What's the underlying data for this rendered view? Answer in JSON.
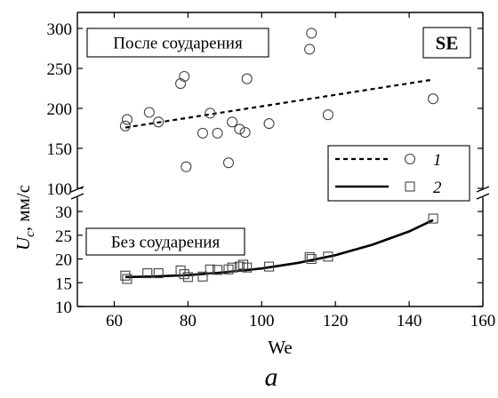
{
  "chart_data": {
    "type": "scatter",
    "title": "",
    "xlabel": "We",
    "ylabel": "U",
    "ylabel_sub": "c",
    "ylabel_unit": ", мм/с",
    "caption": "a",
    "panel_label": "SE",
    "axis_break": true,
    "xlim": [
      50,
      160
    ],
    "xticks": [
      60,
      80,
      100,
      120,
      140,
      160
    ],
    "upper_panel": {
      "label": "После соударения",
      "ylim": [
        100,
        320
      ],
      "yticks": [
        100,
        150,
        200,
        250,
        300
      ],
      "series": [
        {
          "legend": "1",
          "marker": "circle",
          "points": [
            [
              63,
              178
            ],
            [
              63.5,
              186
            ],
            [
              69.5,
              195
            ],
            [
              72,
              183
            ],
            [
              78,
              231
            ],
            [
              79,
              240
            ],
            [
              79.5,
              127
            ],
            [
              86,
              194
            ],
            [
              88,
              169
            ],
            [
              84,
              169
            ],
            [
              91,
              132
            ],
            [
              92,
              183
            ],
            [
              94,
              174
            ],
            [
              95.5,
              170
            ],
            [
              96,
              237
            ],
            [
              102,
              181
            ],
            [
              113,
              274
            ],
            [
              113.5,
              294
            ],
            [
              118,
              192
            ],
            [
              146.5,
              212
            ]
          ],
          "fit": {
            "style": "dashed",
            "x": [
              63,
              146.5
            ],
            "y": [
              176,
              236
            ]
          }
        }
      ]
    },
    "lower_panel": {
      "label": "Без соударения",
      "ylim": [
        10,
        33
      ],
      "yticks": [
        10,
        15,
        20,
        25,
        30
      ],
      "series": [
        {
          "legend": "2",
          "marker": "square",
          "points": [
            [
              63,
              16.5
            ],
            [
              63.5,
              15.8
            ],
            [
              69,
              17
            ],
            [
              72,
              17
            ],
            [
              78,
              17.6
            ],
            [
              79,
              16.8
            ],
            [
              80,
              16.2
            ],
            [
              84,
              16.3
            ],
            [
              86,
              17.8
            ],
            [
              88,
              17.7
            ],
            [
              91,
              17.8
            ],
            [
              92,
              18.2
            ],
            [
              94,
              18.4
            ],
            [
              95,
              18.8
            ],
            [
              96,
              18.2
            ],
            [
              102,
              18.4
            ],
            [
              113,
              20.4
            ],
            [
              113.5,
              20.0
            ],
            [
              118,
              20.5
            ],
            [
              146.5,
              28.5
            ]
          ],
          "fit": {
            "style": "solid",
            "x": [
              63,
              70,
              80,
              90,
              100,
              110,
              120,
              130,
              140,
              146.5
            ],
            "y": [
              16.2,
              16.3,
              16.6,
              17.2,
              18.0,
              19.2,
              20.8,
              23.0,
              25.8,
              28.2
            ]
          }
        }
      ]
    },
    "legend_entries": [
      "1",
      "2"
    ],
    "legend_placement": "right",
    "grid": false
  }
}
